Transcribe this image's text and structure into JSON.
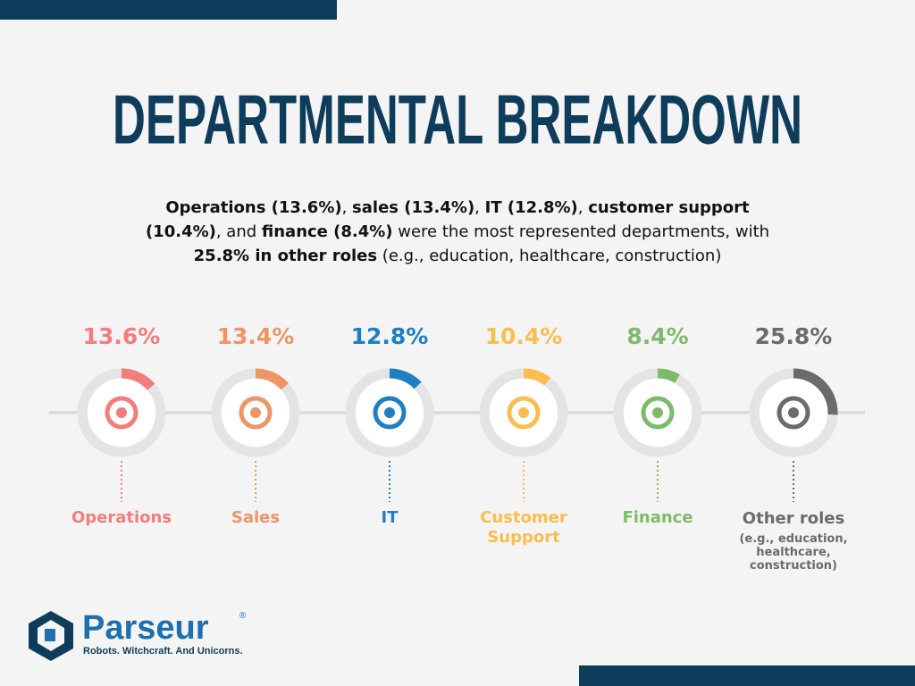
{
  "title": "DEPARTMENTAL BREAKDOWN",
  "summary": [
    {
      "text": "Operations (13.6%)",
      "bold": true
    },
    {
      "text": ", ",
      "bold": false
    },
    {
      "text": "sales (13.4%)",
      "bold": true
    },
    {
      "text": ", ",
      "bold": false
    },
    {
      "text": "IT (12.8%)",
      "bold": true
    },
    {
      "text": ", ",
      "bold": false
    },
    {
      "text": "customer support (10.4%)",
      "bold": true
    },
    {
      "text": ", and ",
      "bold": false
    },
    {
      "text": "finance (8.4%)",
      "bold": true
    },
    {
      "text": " were the most represented departments, with ",
      "bold": false
    },
    {
      "text": "25.8% in other roles",
      "bold": true
    },
    {
      "text": " (e.g., education, healthcare, construction)",
      "bold": false
    }
  ],
  "items": [
    {
      "value": 13.6,
      "value_label": "13.6%",
      "name": "Operations",
      "color": "#f47c7c"
    },
    {
      "value": 13.4,
      "value_label": "13.4%",
      "name": "Sales",
      "color": "#ef9467"
    },
    {
      "value": 12.8,
      "value_label": "12.8%",
      "name": "IT",
      "color": "#1f7fc2"
    },
    {
      "value": 10.4,
      "value_label": "10.4%",
      "name": "Customer Support",
      "color": "#fbbd4f"
    },
    {
      "value": 8.4,
      "value_label": "8.4%",
      "name": "Finance",
      "color": "#7dbb6a"
    },
    {
      "value": 25.8,
      "value_label": "25.8%",
      "name": "Other roles",
      "note": "(e.g., education, healthcare, construction)",
      "color": "#6b6b6b"
    }
  ],
  "logo": {
    "name": "Parseur",
    "mark": "®",
    "tagline": "Robots. Witchcraft. And Unicorns."
  }
}
